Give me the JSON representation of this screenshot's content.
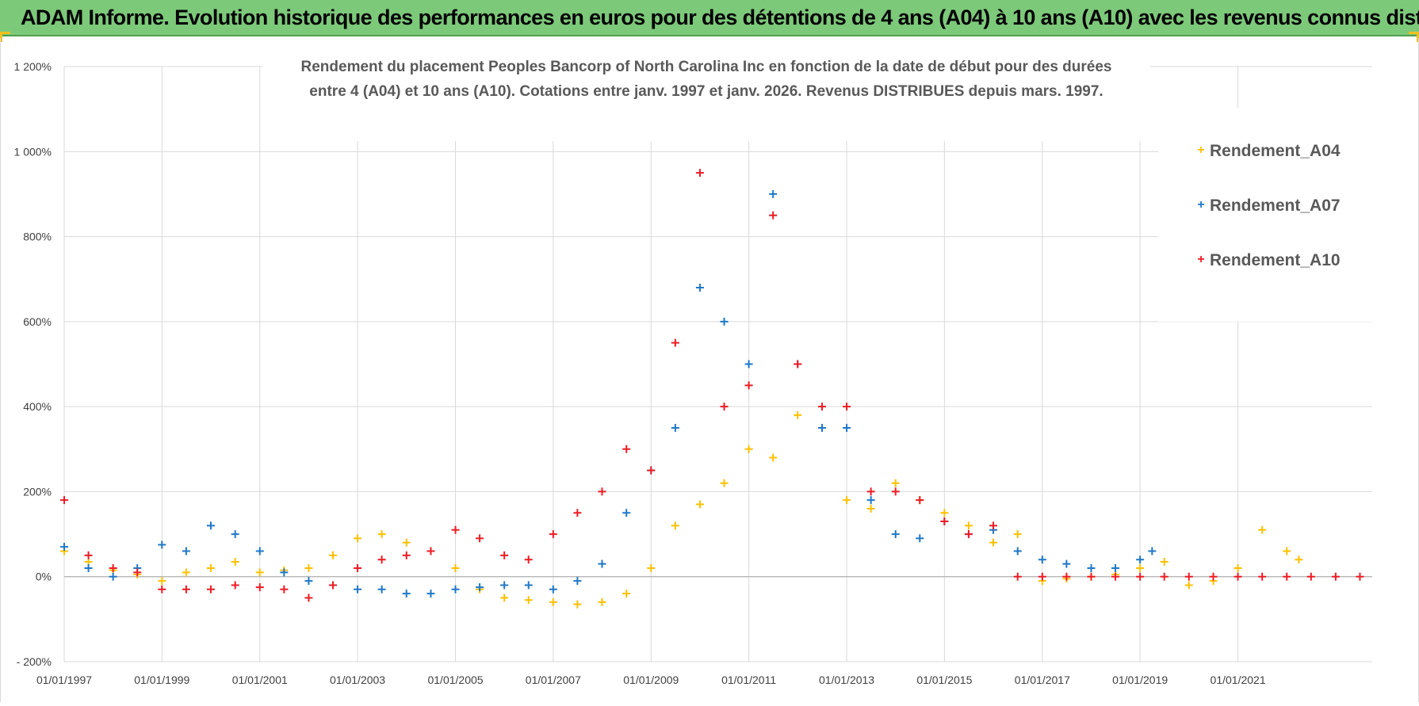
{
  "header": {
    "title": "ADAM Informe. Evolution historique des performances en euros pour des détentions de 4 ans (A04) à 10 ans (A10) avec les revenus connus distribués"
  },
  "colors": {
    "header_bg": "#7dc97a",
    "A04": "#ffc000",
    "A07": "#1f78c8",
    "A10": "#ee1c25",
    "grid": "#d9d9d9"
  },
  "chart_data": {
    "type": "scatter",
    "title_line1": "Rendement du placement Peoples Bancorp of North Carolina Inc en fonction de la date de début pour des durées",
    "title_line2": "entre 4 (A04) et 10 ans (A10).  Cotations entre janv. 1997 et janv. 2026. Revenus DISTRIBUES depuis mars. 1997.",
    "xlabel": "",
    "ylabel": "",
    "ylim": [
      -200,
      1200
    ],
    "yticks": [
      -200,
      0,
      200,
      400,
      600,
      800,
      1000,
      1200
    ],
    "ytick_labels": [
      "- 200%",
      "0%",
      "200%",
      "400%",
      "600%",
      "800%",
      "1 000%",
      "1 200%"
    ],
    "xlim": [
      "1997-01-01",
      "2023-10-01"
    ],
    "xticks": [
      "1997-01-01",
      "1999-01-01",
      "2001-01-01",
      "2003-01-01",
      "2005-01-01",
      "2007-01-01",
      "2009-01-01",
      "2011-01-01",
      "2013-01-01",
      "2015-01-01",
      "2017-01-01",
      "2019-01-01",
      "2021-01-01"
    ],
    "xtick_labels": [
      "01/01/1997",
      "01/01/1999",
      "01/01/2001",
      "01/01/2003",
      "01/01/2005",
      "01/01/2007",
      "01/01/2009",
      "01/01/2011",
      "01/01/2013",
      "01/01/2015",
      "01/01/2017",
      "01/01/2019",
      "01/01/2021"
    ],
    "grid": true,
    "marker": "+",
    "legend_position": "top-right",
    "series": [
      {
        "name": "Rendement_A04",
        "x": [
          "1997-01-01",
          "1997-07-01",
          "1998-01-01",
          "1998-07-01",
          "1999-01-01",
          "1999-07-01",
          "2000-01-01",
          "2000-07-01",
          "2001-01-01",
          "2001-07-01",
          "2002-01-01",
          "2002-07-01",
          "2003-01-01",
          "2003-07-01",
          "2004-01-01",
          "2004-07-01",
          "2005-01-01",
          "2005-07-01",
          "2006-01-01",
          "2006-07-01",
          "2007-01-01",
          "2007-07-01",
          "2008-01-01",
          "2008-07-01",
          "2009-01-01",
          "2009-07-01",
          "2010-01-01",
          "2010-07-01",
          "2011-01-01",
          "2011-07-01",
          "2012-01-01",
          "2012-07-01",
          "2013-01-01",
          "2013-07-01",
          "2014-01-01",
          "2014-07-01",
          "2015-01-01",
          "2015-07-01",
          "2016-01-01",
          "2016-07-01",
          "2017-01-01",
          "2017-07-01",
          "2018-01-01",
          "2018-07-01",
          "2019-01-01",
          "2019-07-01",
          "2020-01-01",
          "2020-07-01",
          "2021-01-01",
          "2021-07-01",
          "2022-01-01",
          "2022-04-01"
        ],
        "y": [
          60,
          35,
          15,
          5,
          -10,
          10,
          20,
          35,
          10,
          15,
          20,
          50,
          90,
          100,
          80,
          60,
          20,
          -30,
          -50,
          -55,
          -60,
          -65,
          -60,
          -40,
          20,
          120,
          170,
          220,
          300,
          280,
          380,
          350,
          180,
          160,
          220,
          180,
          150,
          120,
          80,
          100,
          -10,
          -5,
          0,
          5,
          20,
          35,
          -20,
          -10,
          20,
          110,
          60,
          40
        ]
      },
      {
        "name": "Rendement_A07",
        "x": [
          "1997-01-01",
          "1997-07-01",
          "1998-01-01",
          "1998-07-01",
          "1999-01-01",
          "1999-07-01",
          "2000-01-01",
          "2000-07-01",
          "2001-01-01",
          "2001-07-01",
          "2002-01-01",
          "2002-07-01",
          "2003-01-01",
          "2003-07-01",
          "2004-01-01",
          "2004-07-01",
          "2005-01-01",
          "2005-07-01",
          "2006-01-01",
          "2006-07-01",
          "2007-01-01",
          "2007-07-01",
          "2008-01-01",
          "2008-07-01",
          "2009-01-01",
          "2009-07-01",
          "2010-01-01",
          "2010-07-01",
          "2011-01-01",
          "2011-07-01",
          "2012-01-01",
          "2012-07-01",
          "2013-01-01",
          "2013-07-01",
          "2014-01-01",
          "2014-07-01",
          "2015-01-01",
          "2015-07-01",
          "2016-01-01",
          "2016-07-01",
          "2017-01-01",
          "2017-07-01",
          "2018-01-01",
          "2018-07-01",
          "2019-01-01",
          "2019-04-01"
        ],
        "y": [
          70,
          20,
          0,
          20,
          75,
          60,
          120,
          100,
          60,
          10,
          -10,
          -20,
          -30,
          -30,
          -40,
          -40,
          -30,
          -25,
          -20,
          -20,
          -30,
          -10,
          30,
          150,
          250,
          350,
          680,
          600,
          500,
          900,
          500,
          350,
          350,
          180,
          100,
          90,
          130,
          100,
          110,
          60,
          40,
          30,
          20,
          20,
          40,
          60
        ]
      },
      {
        "name": "Rendement_A10",
        "x": [
          "1997-01-01",
          "1997-07-01",
          "1998-01-01",
          "1998-07-01",
          "1999-01-01",
          "1999-07-01",
          "2000-01-01",
          "2000-07-01",
          "2001-01-01",
          "2001-07-01",
          "2002-01-01",
          "2002-07-01",
          "2003-01-01",
          "2003-07-01",
          "2004-01-01",
          "2004-07-01",
          "2005-01-01",
          "2005-07-01",
          "2006-01-01",
          "2006-07-01",
          "2007-01-01",
          "2007-07-01",
          "2008-01-01",
          "2008-07-01",
          "2009-01-01",
          "2009-07-01",
          "2010-01-01",
          "2010-07-01",
          "2011-01-01",
          "2011-07-01",
          "2012-01-01",
          "2012-07-01",
          "2013-01-01",
          "2013-07-01",
          "2014-01-01",
          "2014-07-01",
          "2015-01-01",
          "2015-07-01",
          "2016-01-01",
          "2016-07-01",
          "2017-01-01",
          "2017-07-01",
          "2018-01-01",
          "2018-07-01",
          "2019-01-01",
          "2019-07-01",
          "2020-01-01",
          "2020-07-01",
          "2021-01-01",
          "2021-07-01",
          "2022-01-01",
          "2022-07-01",
          "2023-01-01",
          "2023-07-01"
        ],
        "y": [
          180,
          50,
          20,
          10,
          -30,
          -30,
          -30,
          -20,
          -25,
          -30,
          -50,
          -20,
          20,
          40,
          50,
          60,
          110,
          90,
          50,
          40,
          100,
          150,
          200,
          300,
          250,
          550,
          950,
          400,
          450,
          850,
          500,
          400,
          400,
          200,
          200,
          180,
          130,
          100,
          120,
          0,
          0,
          0,
          0,
          0,
          0,
          0,
          0,
          0,
          0,
          0,
          0,
          0,
          0,
          0
        ]
      }
    ]
  }
}
